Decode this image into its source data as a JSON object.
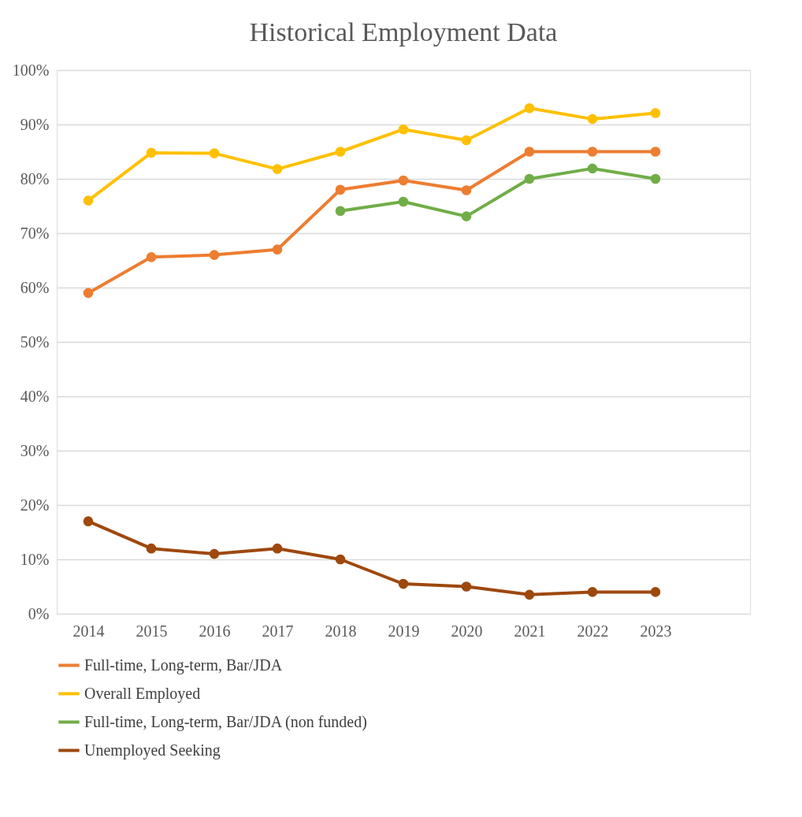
{
  "chart_data": {
    "type": "line",
    "title": "Historical Employment Data",
    "categories": [
      "2014",
      "2015",
      "2016",
      "2017",
      "2018",
      "2019",
      "2020",
      "2021",
      "2022",
      "2023",
      null
    ],
    "series": [
      {
        "name": "Full-time, Long-term, Bar/JDA",
        "color": "#ed7d31",
        "values": [
          59,
          65.6,
          66,
          67,
          78,
          79.7,
          77.9,
          85,
          85,
          85,
          null
        ]
      },
      {
        "name": "Overall Employed",
        "color": "#ffc000",
        "values": [
          76,
          84.8,
          84.7,
          81.8,
          85,
          89.1,
          87.1,
          93,
          91,
          92.1,
          null
        ]
      },
      {
        "name": "Full-time, Long-term, Bar/JDA (non funded)",
        "color": "#70ad47",
        "values": [
          null,
          null,
          null,
          null,
          74.1,
          75.8,
          73.1,
          80,
          81.9,
          80,
          null
        ]
      },
      {
        "name": "Unemployed Seeking",
        "color": "#9e480e",
        "values": [
          17,
          12,
          11,
          12,
          10,
          5.5,
          5,
          3.5,
          4,
          4,
          null
        ]
      }
    ],
    "ylim": [
      0,
      100
    ],
    "yticks": [
      {
        "value": 0,
        "label": "0%"
      },
      {
        "value": 10,
        "label": "10%"
      },
      {
        "value": 20,
        "label": "20%"
      },
      {
        "value": 30,
        "label": "30%"
      },
      {
        "value": 40,
        "label": "40%"
      },
      {
        "value": 50,
        "label": "50%"
      },
      {
        "value": 60,
        "label": "60%"
      },
      {
        "value": 70,
        "label": "70%"
      },
      {
        "value": 80,
        "label": "80%"
      },
      {
        "value": 90,
        "label": "90%"
      },
      {
        "value": 100,
        "label": "100%"
      }
    ],
    "grid": "y",
    "legend": "bottom",
    "marker": "circle",
    "line_style": "solid"
  }
}
